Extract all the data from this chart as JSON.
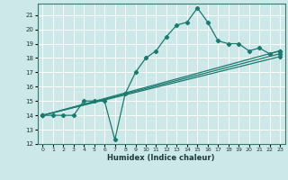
{
  "title": "",
  "xlabel": "Humidex (Indice chaleur)",
  "bg_color": "#cce8e8",
  "grid_color": "#ffffff",
  "line_color": "#1a7a6e",
  "xlim": [
    -0.5,
    23.5
  ],
  "ylim": [
    12,
    21.8
  ],
  "yticks": [
    12,
    13,
    14,
    15,
    16,
    17,
    18,
    19,
    20,
    21
  ],
  "xticks": [
    0,
    1,
    2,
    3,
    4,
    5,
    6,
    7,
    8,
    9,
    10,
    11,
    12,
    13,
    14,
    15,
    16,
    17,
    18,
    19,
    20,
    21,
    22,
    23
  ],
  "series0_x": [
    0,
    1,
    2,
    3,
    4,
    5,
    6,
    7,
    8,
    9,
    10,
    11,
    12,
    13,
    14,
    15,
    16,
    17,
    18,
    19,
    20,
    21,
    22,
    23
  ],
  "series0_y": [
    14,
    14,
    14,
    14,
    15,
    15,
    15,
    12.3,
    15.5,
    17,
    18,
    18.5,
    19.5,
    20.3,
    20.5,
    21.5,
    20.5,
    19.2,
    19,
    19,
    18.5,
    18.7,
    18.3,
    18.5
  ],
  "linear_lines": [
    {
      "x": [
        0,
        23
      ],
      "y": [
        14,
        18.5
      ]
    },
    {
      "x": [
        0,
        23
      ],
      "y": [
        14,
        18.3
      ]
    },
    {
      "x": [
        0,
        23
      ],
      "y": [
        14,
        18.1
      ]
    }
  ]
}
